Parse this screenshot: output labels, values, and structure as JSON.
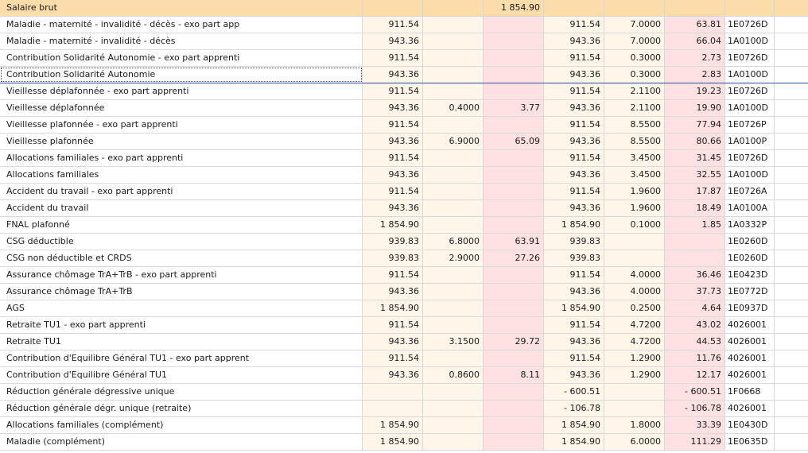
{
  "header": {
    "label": "Salaire brut",
    "base": "",
    "taux_sal": "",
    "montant_sal": "1 854.90",
    "base_pat": "",
    "taux_pat": "",
    "montant_pat": "",
    "code": ""
  },
  "rows": [
    {
      "label": "Maladie - maternité - invalidité - décès - exo part app",
      "base": "911.54",
      "taux_sal": "",
      "montant_sal": "",
      "base_pat": "911.54",
      "taux_pat": "7.0000",
      "montant_pat": "63.81",
      "code": "1E0726D"
    },
    {
      "label": "Maladie - maternité - invalidité - décès",
      "base": "943.36",
      "taux_sal": "",
      "montant_sal": "",
      "base_pat": "943.36",
      "taux_pat": "7.0000",
      "montant_pat": "66.04",
      "code": "1A0100D"
    },
    {
      "label": "Contribution Solidarité Autonomie - exo part apprenti",
      "base": "911.54",
      "taux_sal": "",
      "montant_sal": "",
      "base_pat": "911.54",
      "taux_pat": "0.3000",
      "montant_pat": "2.73",
      "code": "1E0726D"
    },
    {
      "label": "Contribution Solidarité Autonomie",
      "base": "943.36",
      "taux_sal": "",
      "montant_sal": "",
      "base_pat": "943.36",
      "taux_pat": "0.3000",
      "montant_pat": "2.83",
      "code": "1A0100D"
    },
    {
      "label": "Vieillesse déplafonnée - exo part apprenti",
      "base": "911.54",
      "taux_sal": "",
      "montant_sal": "",
      "base_pat": "911.54",
      "taux_pat": "2.1100",
      "montant_pat": "19.23",
      "code": "1E0726D"
    },
    {
      "label": "Vieillesse déplafonnée",
      "base": "943.36",
      "taux_sal": "0.4000",
      "montant_sal": "3.77",
      "base_pat": "943.36",
      "taux_pat": "2.1100",
      "montant_pat": "19.90",
      "code": "1A0100D"
    },
    {
      "label": "Vieillesse plafonnée - exo part apprenti",
      "base": "911.54",
      "taux_sal": "",
      "montant_sal": "",
      "base_pat": "911.54",
      "taux_pat": "8.5500",
      "montant_pat": "77.94",
      "code": "1E0726P"
    },
    {
      "label": "Vieillesse plafonnée",
      "base": "943.36",
      "taux_sal": "6.9000",
      "montant_sal": "65.09",
      "base_pat": "943.36",
      "taux_pat": "8.5500",
      "montant_pat": "80.66",
      "code": "1A0100P"
    },
    {
      "label": "Allocations familiales - exo part apprenti",
      "base": "911.54",
      "taux_sal": "",
      "montant_sal": "",
      "base_pat": "911.54",
      "taux_pat": "3.4500",
      "montant_pat": "31.45",
      "code": "1E0726D"
    },
    {
      "label": "Allocations familiales",
      "base": "943.36",
      "taux_sal": "",
      "montant_sal": "",
      "base_pat": "943.36",
      "taux_pat": "3.4500",
      "montant_pat": "32.55",
      "code": "1A0100D"
    },
    {
      "label": "Accident du travail - exo part apprenti",
      "base": "911.54",
      "taux_sal": "",
      "montant_sal": "",
      "base_pat": "911.54",
      "taux_pat": "1.9600",
      "montant_pat": "17.87",
      "code": "1E0726A"
    },
    {
      "label": "Accident du travail",
      "base": "943.36",
      "taux_sal": "",
      "montant_sal": "",
      "base_pat": "943.36",
      "taux_pat": "1.9600",
      "montant_pat": "18.49",
      "code": "1A0100A"
    },
    {
      "label": "FNAL plafonné",
      "base": "1 854.90",
      "taux_sal": "",
      "montant_sal": "",
      "base_pat": "1 854.90",
      "taux_pat": "0.1000",
      "montant_pat": "1.85",
      "code": "1A0332P"
    },
    {
      "label": "CSG déductible",
      "base": "939.83",
      "taux_sal": "6.8000",
      "montant_sal": "63.91",
      "base_pat": "939.83",
      "taux_pat": "",
      "montant_pat": "",
      "code": "1E0260D"
    },
    {
      "label": "CSG non déductible et CRDS",
      "base": "939.83",
      "taux_sal": "2.9000",
      "montant_sal": "27.26",
      "base_pat": "939.83",
      "taux_pat": "",
      "montant_pat": "",
      "code": "1E0260D"
    },
    {
      "label": "Assurance chômage TrA+TrB - exo part apprenti",
      "base": "911.54",
      "taux_sal": "",
      "montant_sal": "",
      "base_pat": "911.54",
      "taux_pat": "4.0000",
      "montant_pat": "36.46",
      "code": "1E0423D"
    },
    {
      "label": "Assurance chômage TrA+TrB",
      "base": "943.36",
      "taux_sal": "",
      "montant_sal": "",
      "base_pat": "943.36",
      "taux_pat": "4.0000",
      "montant_pat": "37.73",
      "code": "1E0772D"
    },
    {
      "label": "AGS",
      "base": "1 854.90",
      "taux_sal": "",
      "montant_sal": "",
      "base_pat": "1 854.90",
      "taux_pat": "0.2500",
      "montant_pat": "4.64",
      "code": "1E0937D"
    },
    {
      "label": "Retraite TU1 - exo part apprenti",
      "base": "911.54",
      "taux_sal": "",
      "montant_sal": "",
      "base_pat": "911.54",
      "taux_pat": "4.7200",
      "montant_pat": "43.02",
      "code": "4026001"
    },
    {
      "label": "Retraite TU1",
      "base": "943.36",
      "taux_sal": "3.1500",
      "montant_sal": "29.72",
      "base_pat": "943.36",
      "taux_pat": "4.7200",
      "montant_pat": "44.53",
      "code": "4026001"
    },
    {
      "label": "Contribution d'Equilibre Général TU1 - exo part apprent",
      "base": "911.54",
      "taux_sal": "",
      "montant_sal": "",
      "base_pat": "911.54",
      "taux_pat": "1.2900",
      "montant_pat": "11.76",
      "code": "4026001"
    },
    {
      "label": "Contribution d'Equilibre Général TU1",
      "base": "943.36",
      "taux_sal": "0.8600",
      "montant_sal": "8.11",
      "base_pat": "943.36",
      "taux_pat": "1.2900",
      "montant_pat": "12.17",
      "code": "4026001"
    },
    {
      "label": "Réduction générale dégressive unique",
      "base": "",
      "taux_sal": "",
      "montant_sal": "",
      "base_pat": "- 600.51",
      "taux_pat": "",
      "montant_pat": "- 600.51",
      "code": "1F0668"
    },
    {
      "label": "Réduction générale dégr. unique (retraite)",
      "base": "",
      "taux_sal": "",
      "montant_sal": "",
      "base_pat": "- 106.78",
      "taux_pat": "",
      "montant_pat": "- 106.78",
      "code": "4026001"
    },
    {
      "label": "Allocations familiales (complément)",
      "base": "1 854.90",
      "taux_sal": "",
      "montant_sal": "",
      "base_pat": "1 854.90",
      "taux_pat": "1.8000",
      "montant_pat": "33.39",
      "code": "1E0430D"
    },
    {
      "label": "Maladie (complément)",
      "base": "1 854.90",
      "taux_sal": "",
      "montant_sal": "",
      "base_pat": "1 854.90",
      "taux_pat": "6.0000",
      "montant_pat": "111.29",
      "code": "1E0635D"
    }
  ],
  "selected_row_index": 3
}
